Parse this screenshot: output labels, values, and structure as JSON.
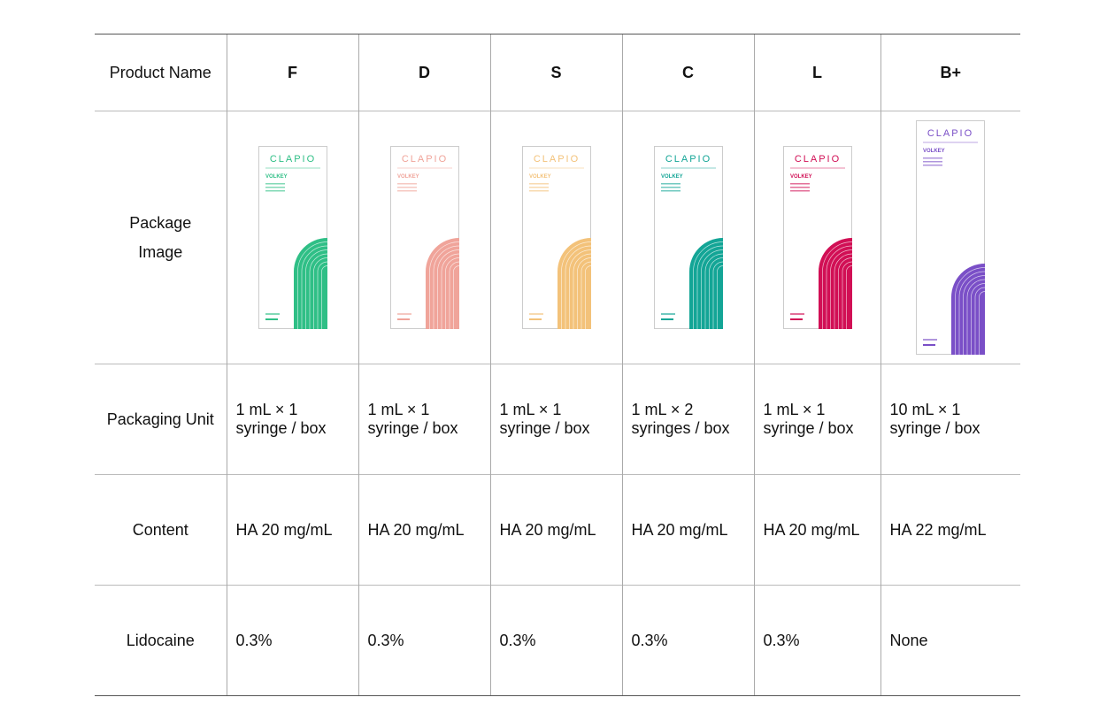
{
  "table": {
    "header": [
      "Product Name",
      "F",
      "D",
      "S",
      "C",
      "L",
      "B+"
    ],
    "package_label": "Package Image",
    "brand": "CLAPIO",
    "line": "VOLKEY",
    "package_colors": [
      "#2fbf86",
      "#f0a49a",
      "#f3c27a",
      "#13a596",
      "#d10f55",
      "#7a4fc7"
    ],
    "rows": [
      [
        "Packaging Unit",
        "1 mL × 1 syringe / box",
        "1 mL × 1 syringe / box",
        "1 mL × 1 syringe / box",
        "1 mL × 2 syringes / box",
        "1 mL × 1 syringe / box",
        "10 mL × 1 syringe / box"
      ],
      [
        "Content",
        "HA 20 mg/mL",
        "HA 20 mg/mL",
        "HA 20 mg/mL",
        "HA 20 mg/mL",
        "HA 20 mg/mL",
        "HA 22 mg/mL"
      ],
      [
        "Lidocaine",
        "0.3%",
        "0.3%",
        "0.3%",
        "0.3%",
        "0.3%",
        "None"
      ]
    ]
  }
}
